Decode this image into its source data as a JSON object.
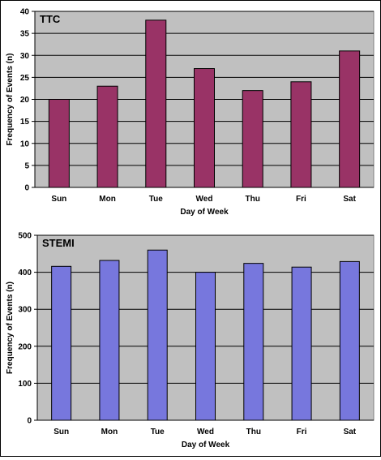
{
  "chart_data": [
    {
      "type": "bar",
      "title": "TTC",
      "xlabel": "Day of Week",
      "ylabel": "Frequency of Events (n)",
      "categories": [
        "Sun",
        "Mon",
        "Tue",
        "Wed",
        "Thu",
        "Fri",
        "Sat"
      ],
      "values": [
        20,
        23,
        38,
        27,
        22,
        24,
        31
      ],
      "ylim": [
        0,
        40
      ],
      "yticks": [
        0,
        5,
        10,
        15,
        20,
        25,
        30,
        35,
        40
      ],
      "bar_color": "#993366",
      "plot_background": "#c0c0c0",
      "grid": true,
      "legend": "none"
    },
    {
      "type": "bar",
      "title": "STEMI",
      "xlabel": "Day of Week",
      "ylabel": "Frequency of Events (n)",
      "categories": [
        "Sun",
        "Mon",
        "Tue",
        "Wed",
        "Thu",
        "Fri",
        "Sat"
      ],
      "values": [
        416,
        432,
        460,
        400,
        424,
        414,
        429
      ],
      "ylim": [
        0,
        500
      ],
      "yticks": [
        0,
        100,
        200,
        300,
        400,
        500
      ],
      "bar_color": "#7777dd",
      "plot_background": "#c0c0c0",
      "grid": true,
      "legend": "none"
    }
  ]
}
